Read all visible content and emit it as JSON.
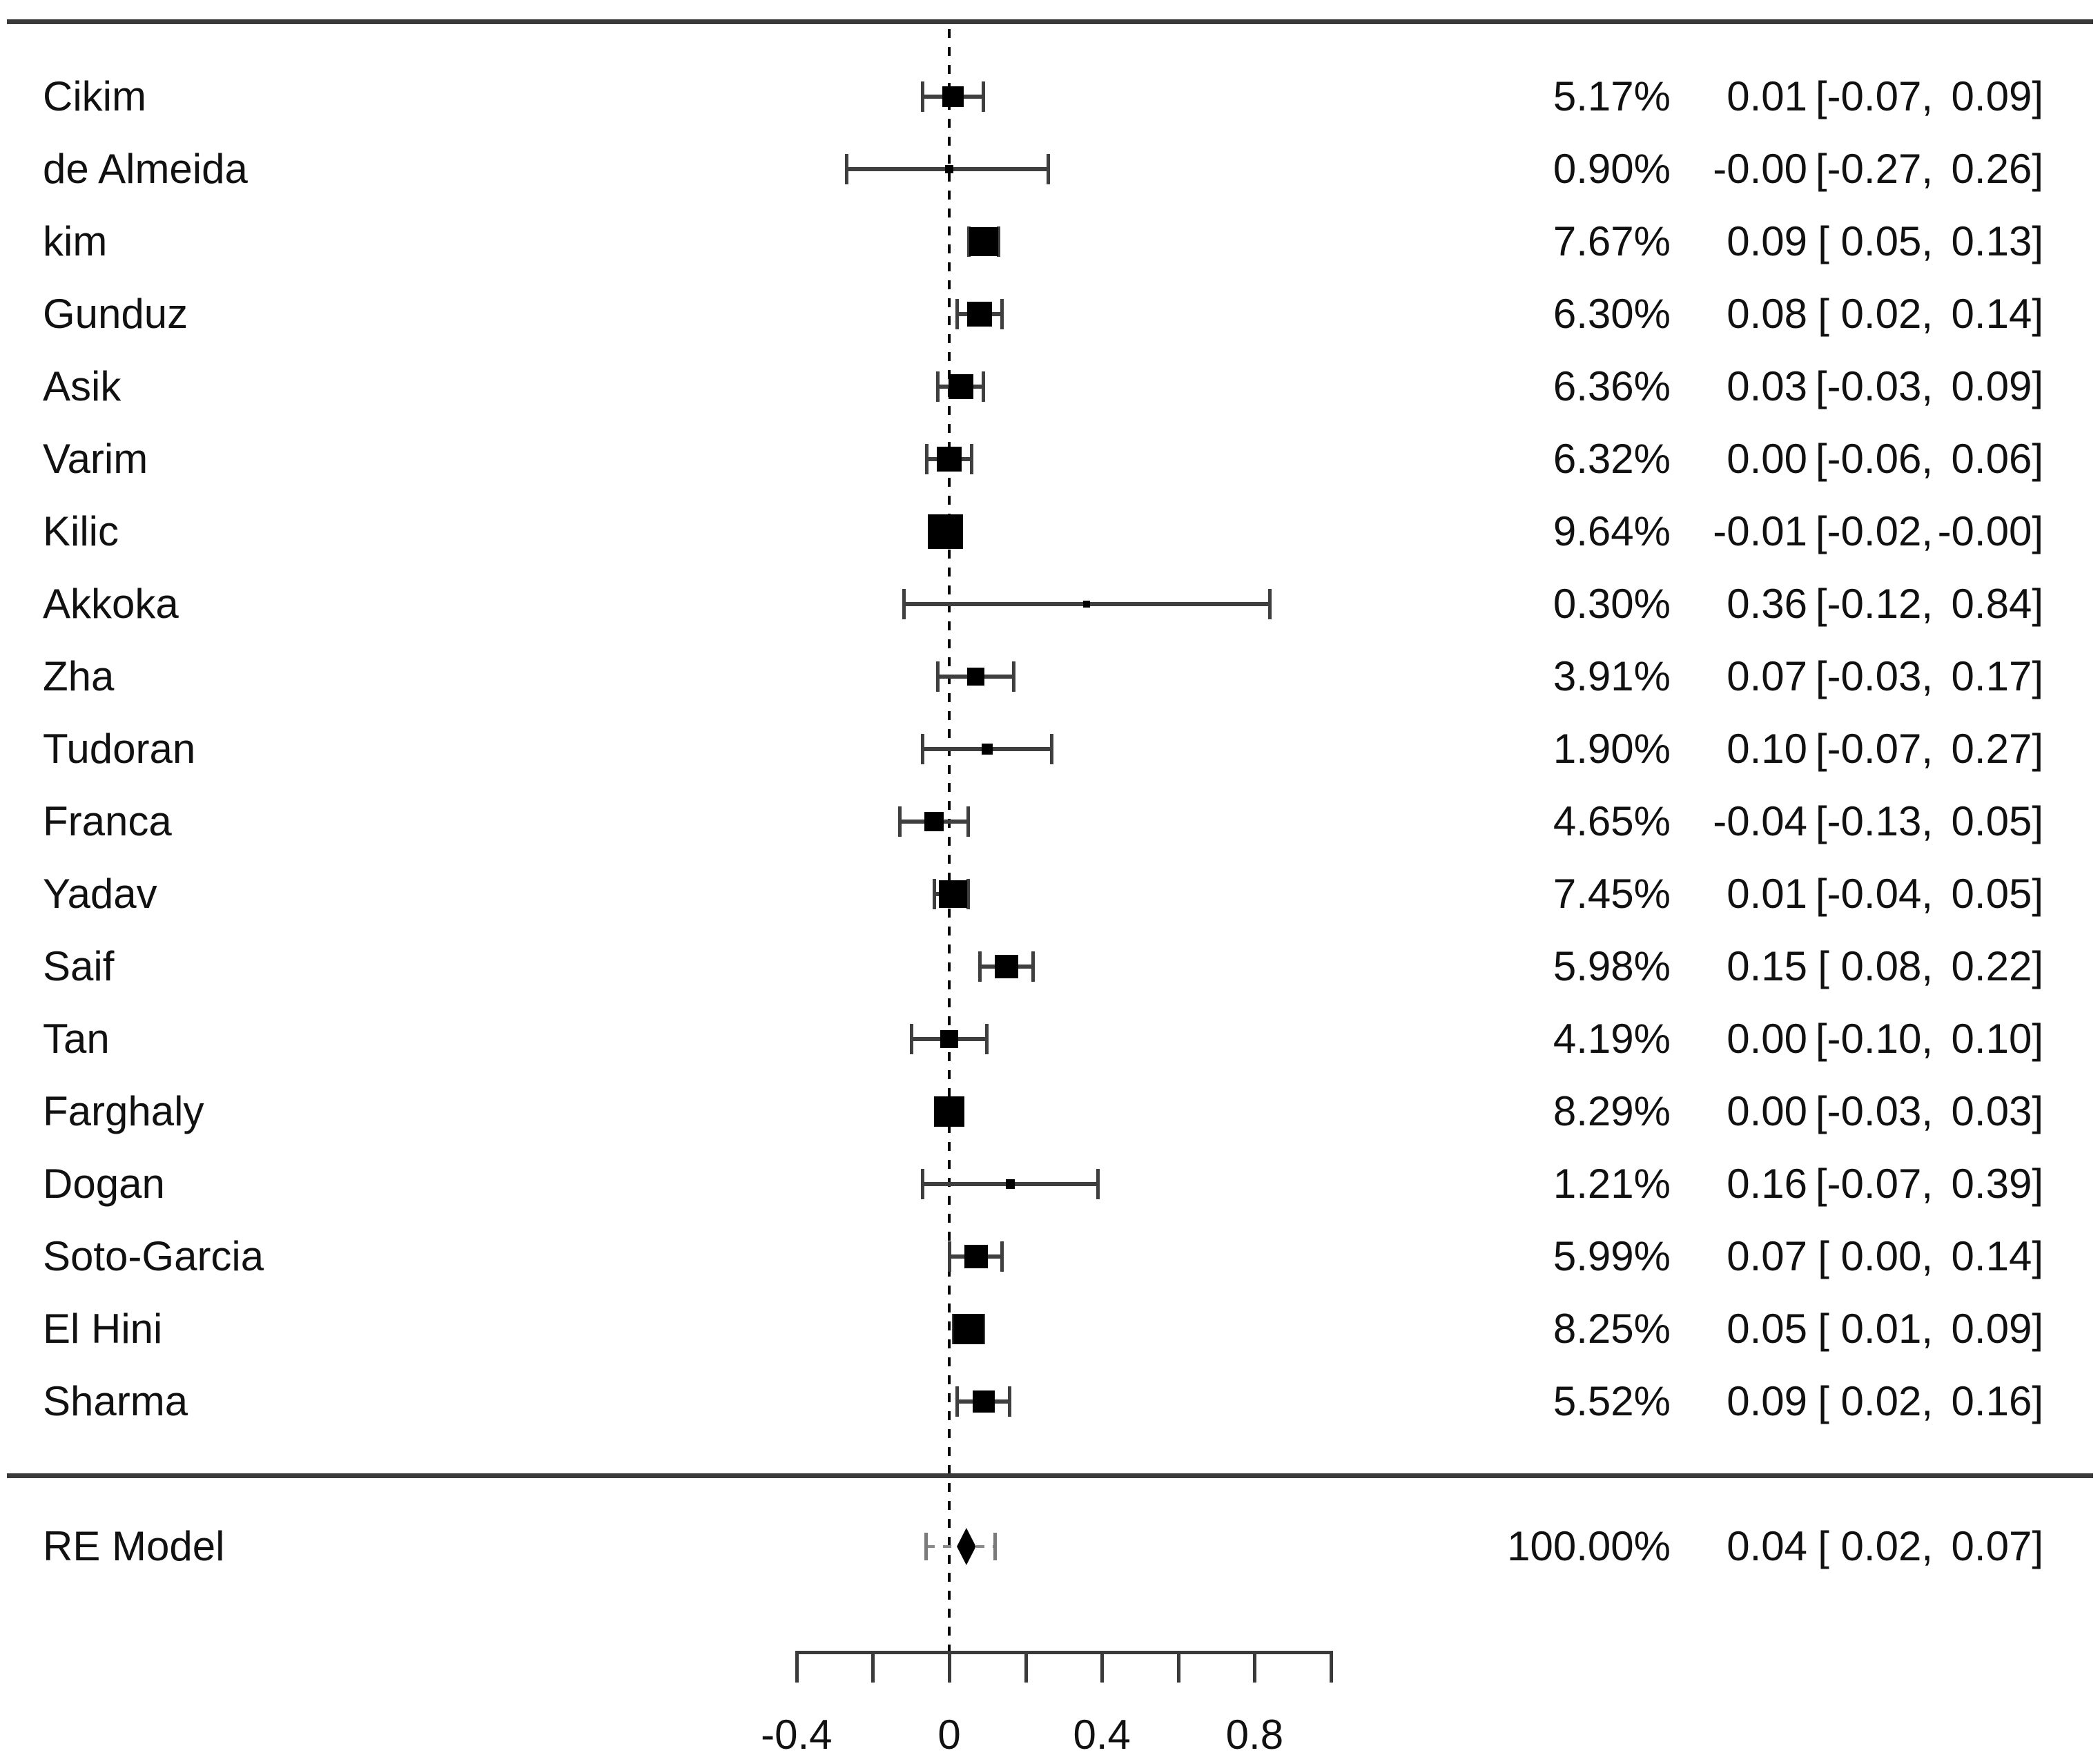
{
  "chart_data": {
    "type": "forest",
    "title": "",
    "xlabel": "",
    "x_axis": {
      "min": -0.45,
      "max": 1.05,
      "tick_values": [
        -0.4,
        -0.2,
        0,
        0.2,
        0.4,
        0.6,
        0.8,
        1.0
      ],
      "labeled_ticks": [
        {
          "value": -0.4,
          "label": "-0.4"
        },
        {
          "value": 0,
          "label": "0"
        },
        {
          "value": 0.4,
          "label": "0.4"
        },
        {
          "value": 0.8,
          "label": "0.8"
        }
      ],
      "zero_reference_line": 0,
      "grid": false
    },
    "colors": {
      "background": "#ffffff",
      "text": "#111111",
      "rules": "#3a3a3a",
      "marker": "#000000",
      "whisker": "#3f3f3f",
      "prediction_interval": "#8a8a8a"
    },
    "studies": [
      {
        "label": "Cikim",
        "weight": 5.17,
        "weight_text": "5.17%",
        "est": 0.01,
        "lb": -0.07,
        "ub": 0.09,
        "est_text": "0.01",
        "ci_lower_text": "[-0.07,",
        "ci_upper_text": "0.09]"
      },
      {
        "label": "de Almeida",
        "weight": 0.9,
        "weight_text": "0.90%",
        "est": 0.0,
        "lb": -0.27,
        "ub": 0.26,
        "est_text": "-0.00",
        "ci_lower_text": "[-0.27,",
        "ci_upper_text": "0.26]"
      },
      {
        "label": "kim",
        "weight": 7.67,
        "weight_text": "7.67%",
        "est": 0.09,
        "lb": 0.05,
        "ub": 0.13,
        "est_text": "0.09",
        "ci_lower_text": "[ 0.05,",
        "ci_upper_text": "0.13]"
      },
      {
        "label": "Gunduz",
        "weight": 6.3,
        "weight_text": "6.30%",
        "est": 0.08,
        "lb": 0.02,
        "ub": 0.14,
        "est_text": "0.08",
        "ci_lower_text": "[ 0.02,",
        "ci_upper_text": "0.14]"
      },
      {
        "label": "Asik",
        "weight": 6.36,
        "weight_text": "6.36%",
        "est": 0.03,
        "lb": -0.03,
        "ub": 0.09,
        "est_text": "0.03",
        "ci_lower_text": "[-0.03,",
        "ci_upper_text": "0.09]"
      },
      {
        "label": "Varim",
        "weight": 6.32,
        "weight_text": "6.32%",
        "est": 0.0,
        "lb": -0.06,
        "ub": 0.06,
        "est_text": "0.00",
        "ci_lower_text": "[-0.06,",
        "ci_upper_text": "0.06]"
      },
      {
        "label": "Kilic",
        "weight": 9.64,
        "weight_text": "9.64%",
        "est": -0.01,
        "lb": -0.02,
        "ub": 0.0,
        "est_text": "-0.01",
        "ci_lower_text": "[-0.02,",
        "ci_upper_text": "-0.00]"
      },
      {
        "label": "Akkoka",
        "weight": 0.3,
        "weight_text": "0.30%",
        "est": 0.36,
        "lb": -0.12,
        "ub": 0.84,
        "est_text": "0.36",
        "ci_lower_text": "[-0.12,",
        "ci_upper_text": "0.84]"
      },
      {
        "label": "Zha",
        "weight": 3.91,
        "weight_text": "3.91%",
        "est": 0.07,
        "lb": -0.03,
        "ub": 0.17,
        "est_text": "0.07",
        "ci_lower_text": "[-0.03,",
        "ci_upper_text": "0.17]"
      },
      {
        "label": "Tudoran",
        "weight": 1.9,
        "weight_text": "1.90%",
        "est": 0.1,
        "lb": -0.07,
        "ub": 0.27,
        "est_text": "0.10",
        "ci_lower_text": "[-0.07,",
        "ci_upper_text": "0.27]"
      },
      {
        "label": "Franca",
        "weight": 4.65,
        "weight_text": "4.65%",
        "est": -0.04,
        "lb": -0.13,
        "ub": 0.05,
        "est_text": "-0.04",
        "ci_lower_text": "[-0.13,",
        "ci_upper_text": "0.05]"
      },
      {
        "label": "Yadav",
        "weight": 7.45,
        "weight_text": "7.45%",
        "est": 0.01,
        "lb": -0.04,
        "ub": 0.05,
        "est_text": "0.01",
        "ci_lower_text": "[-0.04,",
        "ci_upper_text": "0.05]"
      },
      {
        "label": "Saif",
        "weight": 5.98,
        "weight_text": "5.98%",
        "est": 0.15,
        "lb": 0.08,
        "ub": 0.22,
        "est_text": "0.15",
        "ci_lower_text": "[ 0.08,",
        "ci_upper_text": "0.22]"
      },
      {
        "label": "Tan",
        "weight": 4.19,
        "weight_text": "4.19%",
        "est": 0.0,
        "lb": -0.1,
        "ub": 0.1,
        "est_text": "0.00",
        "ci_lower_text": "[-0.10,",
        "ci_upper_text": "0.10]"
      },
      {
        "label": "Farghaly",
        "weight": 8.29,
        "weight_text": "8.29%",
        "est": 0.0,
        "lb": -0.03,
        "ub": 0.03,
        "est_text": "0.00",
        "ci_lower_text": "[-0.03,",
        "ci_upper_text": "0.03]"
      },
      {
        "label": "Dogan",
        "weight": 1.21,
        "weight_text": "1.21%",
        "est": 0.16,
        "lb": -0.07,
        "ub": 0.39,
        "est_text": "0.16",
        "ci_lower_text": "[-0.07,",
        "ci_upper_text": "0.39]"
      },
      {
        "label": "Soto-Garcia",
        "weight": 5.99,
        "weight_text": "5.99%",
        "est": 0.07,
        "lb": 0.0,
        "ub": 0.14,
        "est_text": "0.07",
        "ci_lower_text": "[ 0.00,",
        "ci_upper_text": "0.14]"
      },
      {
        "label": "El Hini",
        "weight": 8.25,
        "weight_text": "8.25%",
        "est": 0.05,
        "lb": 0.01,
        "ub": 0.09,
        "est_text": "0.05",
        "ci_lower_text": "[ 0.01,",
        "ci_upper_text": "0.09]"
      },
      {
        "label": "Sharma",
        "weight": 5.52,
        "weight_text": "5.52%",
        "est": 0.09,
        "lb": 0.02,
        "ub": 0.16,
        "est_text": "0.09",
        "ci_lower_text": "[ 0.02,",
        "ci_upper_text": "0.16]"
      }
    ],
    "summary": {
      "label": "RE Model",
      "weight": 100.0,
      "weight_text": "100.00%",
      "est": 0.04,
      "lb": 0.02,
      "ub": 0.07,
      "est_text": "0.04",
      "ci_lower_text": "[ 0.02,",
      "ci_upper_text": "0.07]",
      "prediction_interval": {
        "lb": -0.06,
        "ub": 0.12
      }
    }
  }
}
